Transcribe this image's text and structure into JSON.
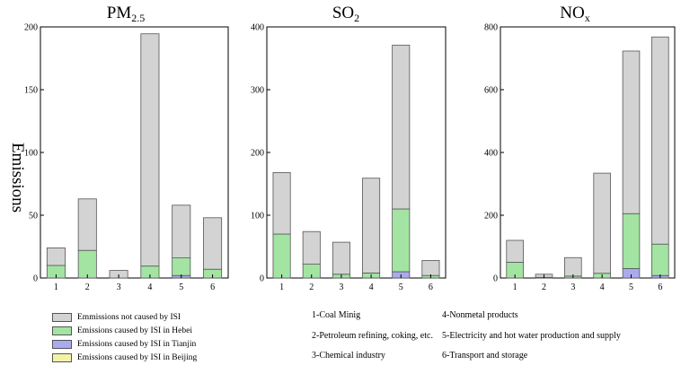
{
  "y_axis_label": "Emissions",
  "legend": [
    {
      "label": "Emmissions not caused by ISI",
      "color": "#d3d3d3"
    },
    {
      "label": "Emissions caused by ISI in Hebei",
      "color": "#a3e4a3"
    },
    {
      "label": "Emissions caused by ISI in Tianjin",
      "color": "#aaaaee"
    },
    {
      "label": "Emissions caused by ISI in Beijing",
      "color": "#f3f3a8"
    }
  ],
  "sector_notes": [
    "1-Coal Minig",
    "2-Petroleum refining, coking, etc.",
    "3-Chemical industry",
    "4-Nonmetal products",
    "5-Electricity and hot water production and supply",
    "6-Transport and storage"
  ],
  "chart_data": [
    {
      "type": "bar",
      "stacked": true,
      "title": "PM",
      "title_sub": "2.5",
      "categories": [
        "1",
        "2",
        "3",
        "4",
        "5",
        "6"
      ],
      "ylim": [
        0,
        200
      ],
      "yticks": [
        0,
        50,
        100,
        150,
        200
      ],
      "series": [
        {
          "name": "Emissions caused by ISI in Beijing",
          "values": [
            0,
            0,
            0,
            0,
            0,
            0
          ]
        },
        {
          "name": "Emissions caused by ISI in Tianjin",
          "values": [
            0,
            0,
            0,
            0,
            2,
            0
          ]
        },
        {
          "name": "Emissions caused by ISI in Hebei",
          "values": [
            10,
            22,
            0,
            9.5,
            14,
            7
          ]
        },
        {
          "name": "Emmissions not caused by ISI",
          "values": [
            14,
            41,
            6,
            185,
            42,
            41
          ]
        }
      ]
    },
    {
      "type": "bar",
      "stacked": true,
      "title": "SO",
      "title_sub": "2",
      "categories": [
        "1",
        "2",
        "3",
        "4",
        "5",
        "6"
      ],
      "ylim": [
        0,
        400
      ],
      "yticks": [
        0,
        100,
        200,
        300,
        400
      ],
      "series": [
        {
          "name": "Emissions caused by ISI in Beijing",
          "values": [
            0,
            0,
            0,
            0,
            0,
            0
          ]
        },
        {
          "name": "Emissions caused by ISI in Tianjin",
          "values": [
            0,
            0,
            0,
            0,
            10,
            0
          ]
        },
        {
          "name": "Emissions caused by ISI in Hebei",
          "values": [
            70,
            22,
            6,
            8,
            100,
            4
          ]
        },
        {
          "name": "Emmissions not caused by ISI",
          "values": [
            98,
            52,
            51,
            151,
            261,
            24
          ]
        }
      ]
    },
    {
      "type": "bar",
      "stacked": true,
      "title": "NO",
      "title_sub": "x",
      "categories": [
        "1",
        "2",
        "3",
        "4",
        "5",
        "6"
      ],
      "ylim": [
        0,
        800
      ],
      "yticks": [
        0,
        200,
        400,
        600,
        800
      ],
      "series": [
        {
          "name": "Emissions caused by ISI in Beijing",
          "values": [
            0,
            0,
            0,
            0,
            0,
            0
          ]
        },
        {
          "name": "Emissions caused by ISI in Tianjin",
          "values": [
            0,
            0,
            0,
            0,
            30,
            8
          ]
        },
        {
          "name": "Emissions caused by ISI in Hebei",
          "values": [
            50,
            2,
            6,
            15,
            175,
            100
          ]
        },
        {
          "name": "Emmissions not caused by ISI",
          "values": [
            70,
            10,
            59,
            319,
            518,
            660
          ]
        }
      ]
    }
  ]
}
